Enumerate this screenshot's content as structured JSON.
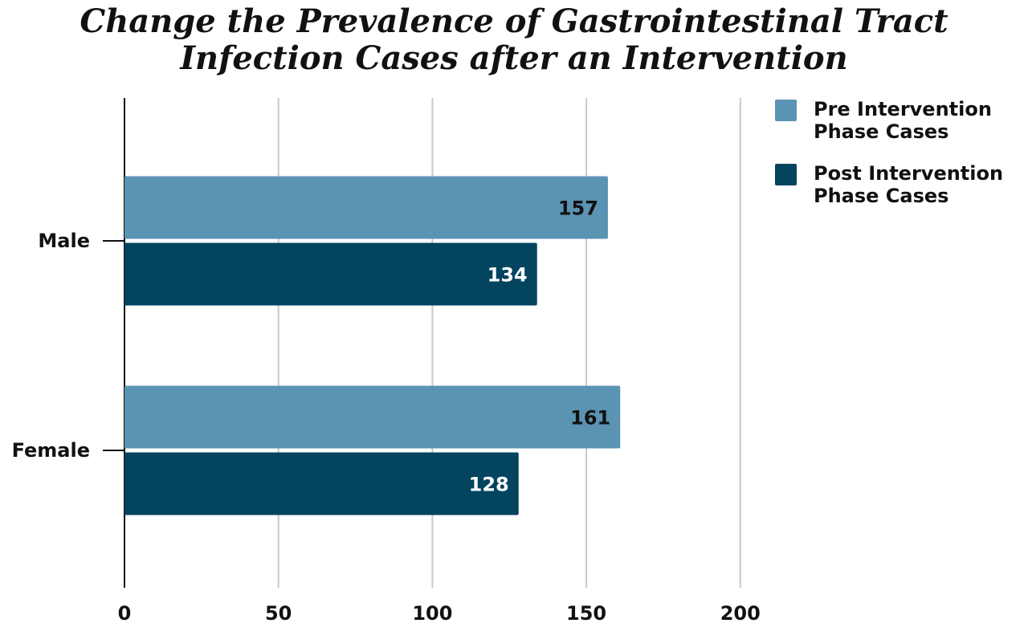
{
  "chart_data": {
    "type": "bar",
    "orientation": "horizontal",
    "title_lines": [
      "Change the Prevalence of Gastrointestinal Tract",
      "Infection Cases after an Intervention"
    ],
    "categories": [
      "Male",
      "Female"
    ],
    "series": [
      {
        "name": "Pre Intervention Phase Cases",
        "values": [
          157,
          161
        ],
        "color": "#5b93b3",
        "label_color": "#111111"
      },
      {
        "name": "Post Intervention Phase Cases",
        "values": [
          134,
          128
        ],
        "color": "#03445f",
        "label_color": "#ffffff"
      }
    ],
    "xlim": [
      0,
      200
    ],
    "xticks": [
      "0",
      "50",
      "100",
      "150",
      "200"
    ],
    "grid": true,
    "legend_position": "top-right",
    "xlabel": "",
    "ylabel": ""
  }
}
